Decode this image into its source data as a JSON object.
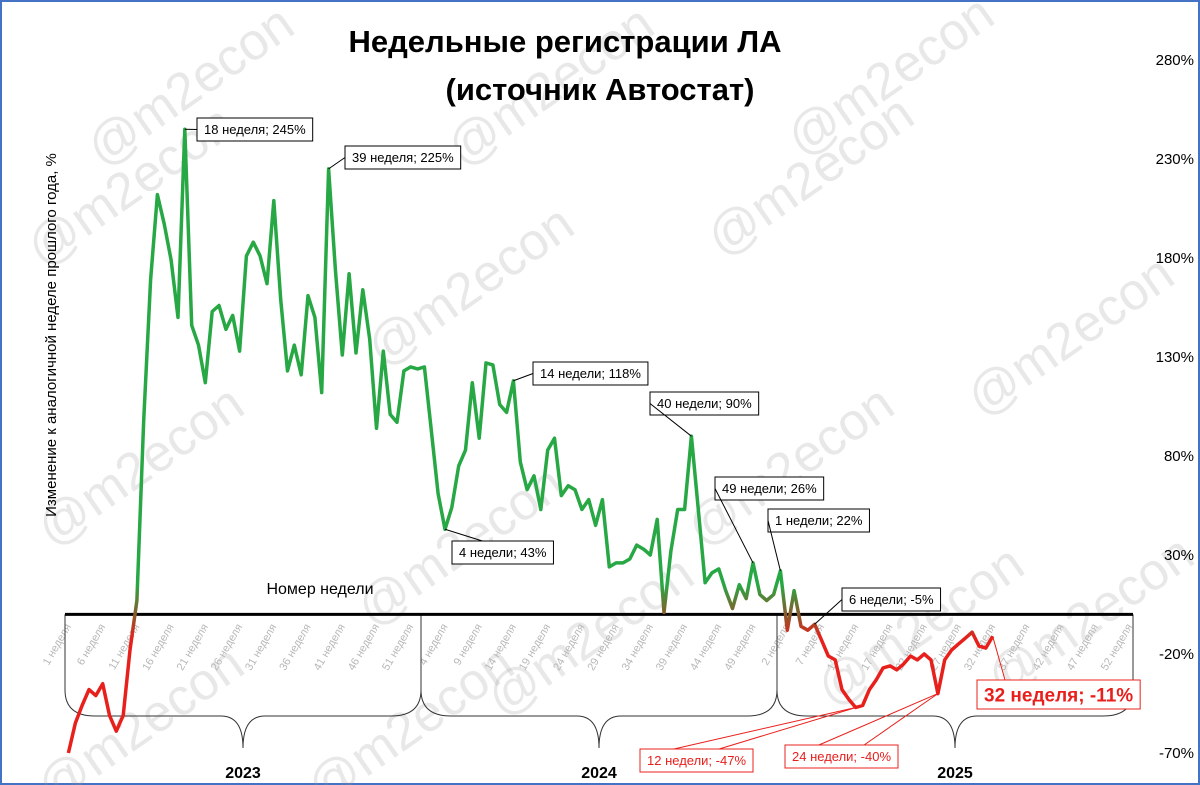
{
  "chart_data": {
    "type": "line",
    "title": "Недельные регистрации ЛА",
    "subtitle": "(источник Автостат)",
    "y_label": "Изменение к аналогичной  неделе прошлого года, %",
    "x_label": "Номер недели",
    "watermark": "@m2econ",
    "color": "#27a844",
    "negative_color": "#e8201c",
    "groups": [
      "2023",
      "2024",
      "2025"
    ],
    "categories": [
      "1 неделя",
      null,
      null,
      null,
      null,
      "6 неделя",
      null,
      null,
      null,
      null,
      "11 неделя",
      null,
      null,
      null,
      null,
      "16 неделя",
      null,
      null,
      null,
      null,
      "21 неделя",
      null,
      null,
      null,
      null,
      "26 неделя",
      null,
      null,
      null,
      null,
      "31 неделя",
      null,
      null,
      null,
      null,
      "36 неделя",
      null,
      null,
      null,
      null,
      "41 неделя",
      null,
      null,
      null,
      null,
      "46 неделя",
      null,
      null,
      null,
      null,
      "51 неделя",
      null,
      null,
      null,
      null,
      "4 неделя",
      null,
      null,
      null,
      null,
      "9 неделя",
      null,
      null,
      null,
      null,
      "14 неделя",
      null,
      null,
      null,
      null,
      "19 неделя",
      null,
      null,
      null,
      null,
      "24 неделя",
      null,
      null,
      null,
      null,
      "29 неделя",
      null,
      null,
      null,
      null,
      "34 неделя",
      null,
      null,
      null,
      null,
      "39 неделя",
      null,
      null,
      null,
      null,
      "44 неделя",
      null,
      null,
      null,
      null,
      "49 неделя",
      null,
      null,
      null,
      null,
      "2 неделя",
      null,
      null,
      null,
      null,
      "7 неделя",
      null,
      null,
      null,
      null,
      "12 неделя",
      null,
      null,
      null,
      null,
      "17 неделя",
      null,
      null,
      null,
      null,
      "22 неделя",
      null,
      null,
      null,
      null,
      "27 неделя",
      null,
      null,
      null,
      null,
      "32 неделя",
      null,
      null,
      null,
      null,
      "37 неделя",
      null,
      null,
      null,
      null,
      "42 неделя",
      null,
      null,
      null,
      null,
      "47 неделя",
      null,
      null,
      null,
      null,
      "52 неделя"
    ],
    "values": [
      -70,
      -55,
      -46,
      -38,
      -41,
      -35,
      -51,
      -59,
      -51,
      -18,
      7,
      98,
      169,
      212,
      197,
      179,
      150,
      245,
      146,
      136,
      117,
      153,
      156,
      144,
      151,
      133,
      181,
      188,
      181,
      167,
      209,
      159,
      123,
      136,
      121,
      161,
      150,
      112,
      225,
      174,
      131,
      172,
      132,
      164,
      139,
      94,
      133,
      101,
      97,
      123,
      125,
      124,
      125,
      93,
      61,
      43,
      54,
      75,
      83,
      117,
      89,
      127,
      126,
      106,
      102,
      118,
      77,
      63,
      70,
      53,
      83,
      89,
      60,
      65,
      63,
      53,
      58,
      45,
      58,
      24,
      26,
      26,
      28,
      35,
      33,
      30,
      48,
      1,
      32,
      53,
      53,
      90,
      53,
      16,
      21,
      23,
      12,
      3,
      15,
      8,
      26,
      10,
      7,
      10,
      22,
      -8,
      12,
      -6,
      -8,
      -5,
      -13,
      -21,
      -23,
      -38,
      -43,
      -47,
      -46,
      -38,
      -33,
      -27,
      -26,
      -28,
      -25,
      -21,
      -23,
      -20,
      -23,
      -40,
      -23,
      -18,
      -15,
      -12,
      -9,
      -16,
      -17,
      -11,
      null,
      null,
      null,
      null,
      null,
      null,
      null,
      null,
      null,
      null,
      null,
      null,
      null,
      null,
      null,
      null,
      null,
      null,
      null,
      null
    ],
    "ylim": [
      -70,
      280
    ],
    "yticks": [
      {
        "value": -70,
        "label": "-70%"
      },
      {
        "value": -20,
        "label": "-20%"
      },
      {
        "value": 30,
        "label": "30%"
      },
      {
        "value": 80,
        "label": "80%"
      },
      {
        "value": 130,
        "label": "130%"
      },
      {
        "value": 180,
        "label": "180%"
      },
      {
        "value": 230,
        "label": "230%"
      },
      {
        "value": 280,
        "label": "280%"
      }
    ],
    "annotations": [
      "18 неделя; 245%",
      "39 неделя; 225%",
      "14 недели; 118%",
      "40 недели; 90%",
      "4 недели; 43%",
      "49 недели; 26%",
      "1 недели; 22%",
      "6 недели; -5%",
      "12 недели; -47%",
      "24 недели; -40%",
      "32 неделя; -11%"
    ]
  }
}
